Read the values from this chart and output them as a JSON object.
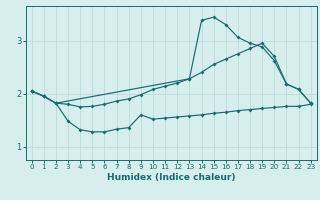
{
  "xlabel": "Humidex (Indice chaleur)",
  "xlim": [
    -0.5,
    23.5
  ],
  "ylim": [
    0.75,
    3.65
  ],
  "yticks": [
    1,
    2,
    3
  ],
  "xticks": [
    0,
    1,
    2,
    3,
    4,
    5,
    6,
    7,
    8,
    9,
    10,
    11,
    12,
    13,
    14,
    15,
    16,
    17,
    18,
    19,
    20,
    21,
    22,
    23
  ],
  "bg_color": "#d6eeee",
  "line_color": "#1a6b6b",
  "grid_color": "#b8d8d8",
  "line_top_x": [
    0,
    1,
    2,
    13,
    14,
    15,
    16,
    17,
    18,
    19,
    20,
    21,
    22,
    23
  ],
  "line_top_y": [
    2.05,
    1.95,
    1.82,
    2.28,
    3.38,
    3.44,
    3.3,
    3.06,
    2.95,
    2.88,
    2.62,
    2.18,
    2.08,
    1.82
  ],
  "line_mid_x": [
    0,
    1,
    2,
    3,
    4,
    5,
    6,
    7,
    8,
    9,
    10,
    11,
    12,
    13,
    14,
    15,
    16,
    17,
    18,
    19,
    20,
    21,
    22,
    23
  ],
  "line_mid_y": [
    2.05,
    1.95,
    1.82,
    1.8,
    1.75,
    1.76,
    1.8,
    1.86,
    1.9,
    1.98,
    2.08,
    2.14,
    2.2,
    2.28,
    2.4,
    2.55,
    2.65,
    2.75,
    2.85,
    2.95,
    2.7,
    2.18,
    2.08,
    1.82
  ],
  "line_bot_x": [
    0,
    1,
    2,
    3,
    4,
    5,
    6,
    7,
    8,
    9,
    10,
    11,
    12,
    13,
    14,
    15,
    16,
    17,
    18,
    19,
    20,
    21,
    22,
    23
  ],
  "line_bot_y": [
    2.05,
    1.95,
    1.82,
    1.48,
    1.32,
    1.28,
    1.28,
    1.33,
    1.36,
    1.6,
    1.52,
    1.54,
    1.56,
    1.58,
    1.6,
    1.63,
    1.65,
    1.68,
    1.7,
    1.72,
    1.74,
    1.76,
    1.76,
    1.8
  ],
  "marker": "D",
  "markersize": 2.0,
  "linewidth": 0.85
}
